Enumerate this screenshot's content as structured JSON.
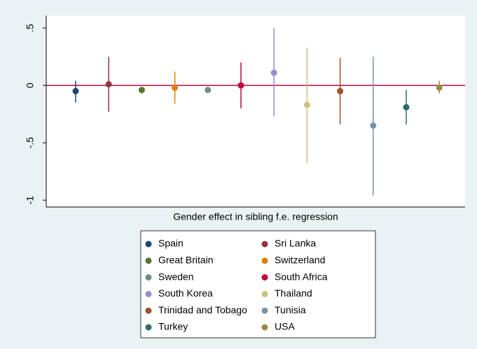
{
  "chart_data": {
    "type": "errorbar",
    "x_label": "Gender effect in sibling f.e. regression",
    "ylim": [
      -1.06,
      0.61
    ],
    "yticks": [
      {
        "value": 0.5,
        "label": ".5"
      },
      0,
      {
        "value": -0.5,
        "label": "-.5"
      },
      -1
    ],
    "reference_line": 0,
    "reference_color": "#c10534",
    "series": [
      {
        "name": "Spain",
        "color": "#1a476f",
        "values": [
          -0.05
        ],
        "ci": [
          -0.15,
          0.04
        ]
      },
      {
        "name": "Sri Lanka",
        "color": "#90353b",
        "values": [
          0.01
        ],
        "ci": [
          -0.23,
          0.25
        ]
      },
      {
        "name": "Great Britain",
        "color": "#55752f",
        "values": [
          -0.04
        ],
        "ci": [
          -0.07,
          -0.02
        ]
      },
      {
        "name": "Switzerland",
        "color": "#e37e00",
        "values": [
          -0.02
        ],
        "ci": [
          -0.16,
          0.12
        ]
      },
      {
        "name": "Sweden",
        "color": "#6e8e84",
        "values": [
          -0.04
        ],
        "ci": [
          -0.06,
          -0.02
        ]
      },
      {
        "name": "South Africa",
        "color": "#c10534",
        "values": [
          0.0
        ],
        "ci": [
          -0.2,
          0.2
        ]
      },
      {
        "name": "South Korea",
        "color": "#938dd2",
        "values": [
          0.11
        ],
        "ci": [
          -0.27,
          0.5
        ]
      },
      {
        "name": "Thailand",
        "color": "#cac27e",
        "values": [
          -0.17
        ],
        "ci": [
          -0.68,
          0.33
        ]
      },
      {
        "name": "Trinidad and Tobago",
        "color": "#a0522d",
        "values": [
          -0.05
        ],
        "ci": [
          -0.34,
          0.24
        ]
      },
      {
        "name": "Tunisia",
        "color": "#7b92a8",
        "values": [
          -0.35
        ],
        "ci": [
          -0.96,
          0.25
        ]
      },
      {
        "name": "Turkey",
        "color": "#2d6d66",
        "values": [
          -0.19
        ],
        "ci": [
          -0.34,
          -0.04
        ]
      },
      {
        "name": "USA",
        "color": "#9c8847",
        "values": [
          -0.02
        ],
        "ci": [
          -0.07,
          0.04
        ]
      }
    ]
  }
}
